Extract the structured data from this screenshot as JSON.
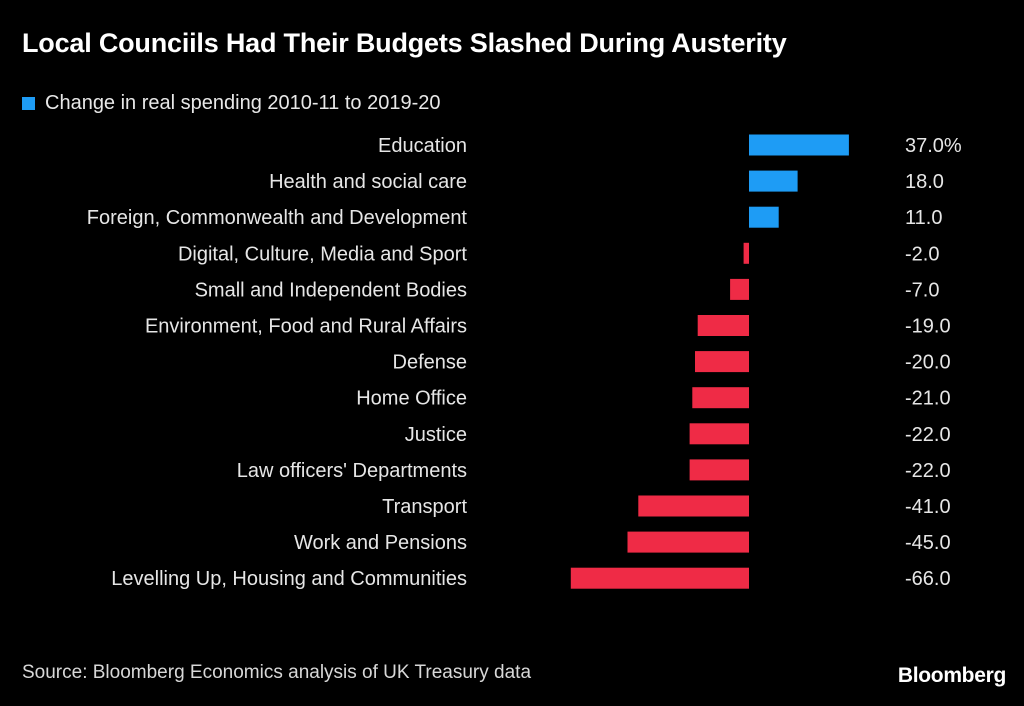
{
  "colors": {
    "positive": "#1e9cf5",
    "negative": "#ef2b46"
  },
  "chart_data": {
    "type": "bar",
    "orientation": "horizontal",
    "title": "Local Counciils Had Their Budgets Slashed During Austerity",
    "legend": [
      "Change in real spending 2010-11 to 2019-20"
    ],
    "categories": [
      "Education",
      "Health and social care",
      "Foreign, Commonwealth and Development",
      "Digital, Culture, Media and Sport",
      "Small and Independent Bodies",
      "Environment, Food and Rural Affairs",
      "Defense",
      "Home Office",
      "Justice",
      "Law officers' Departments",
      "Transport",
      "Work and Pensions",
      "Levelling Up, Housing and Communities"
    ],
    "values": [
      37.0,
      18.0,
      11.0,
      -2.0,
      -7.0,
      -19.0,
      -20.0,
      -21.0,
      -22.0,
      -22.0,
      -41.0,
      -45.0,
      -66.0
    ],
    "value_labels": [
      "37.0%",
      "18.0",
      "11.0",
      "-2.0",
      "-7.0",
      "-19.0",
      "-20.0",
      "-21.0",
      "-22.0",
      "-22.0",
      "-41.0",
      "-45.0",
      "-66.0"
    ],
    "xlim": [
      -66,
      37
    ],
    "source": "Source: Bloomberg Economics analysis of UK Treasury data"
  },
  "brand": "Bloomberg"
}
